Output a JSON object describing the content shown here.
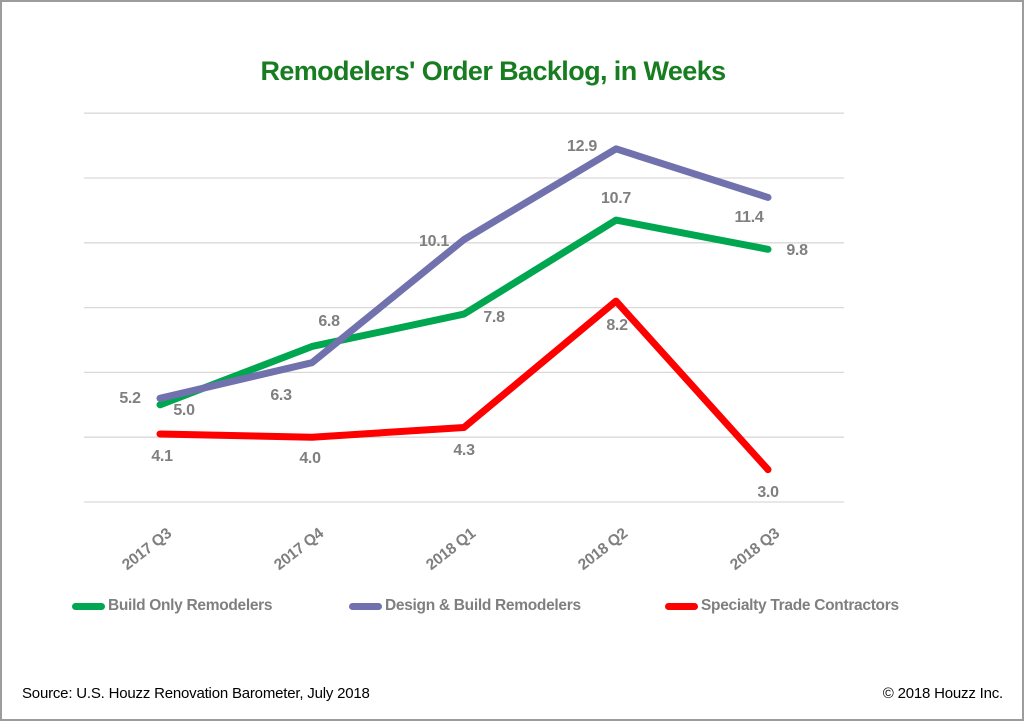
{
  "title": "Remodelers' Order Backlog, in Weeks",
  "chart_data": {
    "type": "line",
    "title": "Remodelers' Order Backlog, in Weeks",
    "categories": [
      "2017 Q3",
      "2017 Q4",
      "2018 Q1",
      "2018 Q2",
      "2018 Q3"
    ],
    "series": [
      {
        "name": "Build Only Remodelers",
        "color": "#00a650",
        "values": [
          5.0,
          6.8,
          7.8,
          10.7,
          9.8
        ]
      },
      {
        "name": "Design & Build Remodelers",
        "color": "#7171ad",
        "values": [
          5.2,
          6.3,
          10.1,
          12.9,
          11.4
        ]
      },
      {
        "name": "Specialty Trade Contractors",
        "color": "#fe0000",
        "values": [
          4.1,
          4.0,
          4.3,
          8.2,
          3.0
        ]
      }
    ],
    "xlabel": "",
    "ylabel": "",
    "ylim": [
      2,
      14
    ],
    "gridline_step": 2,
    "grid": true,
    "y_axis_labels_visible": false,
    "data_labels": true,
    "legend_position": "bottom"
  },
  "colors": {
    "title_green": "#177d20",
    "label_gray": "#7f7f7f",
    "gridline": "#d9d9d9",
    "frame_border": "#9c9c9c"
  },
  "footer": {
    "source": "Source: U.S. Houzz Renovation Barometer, July 2018",
    "copyright": "© 2018 Houzz Inc."
  }
}
